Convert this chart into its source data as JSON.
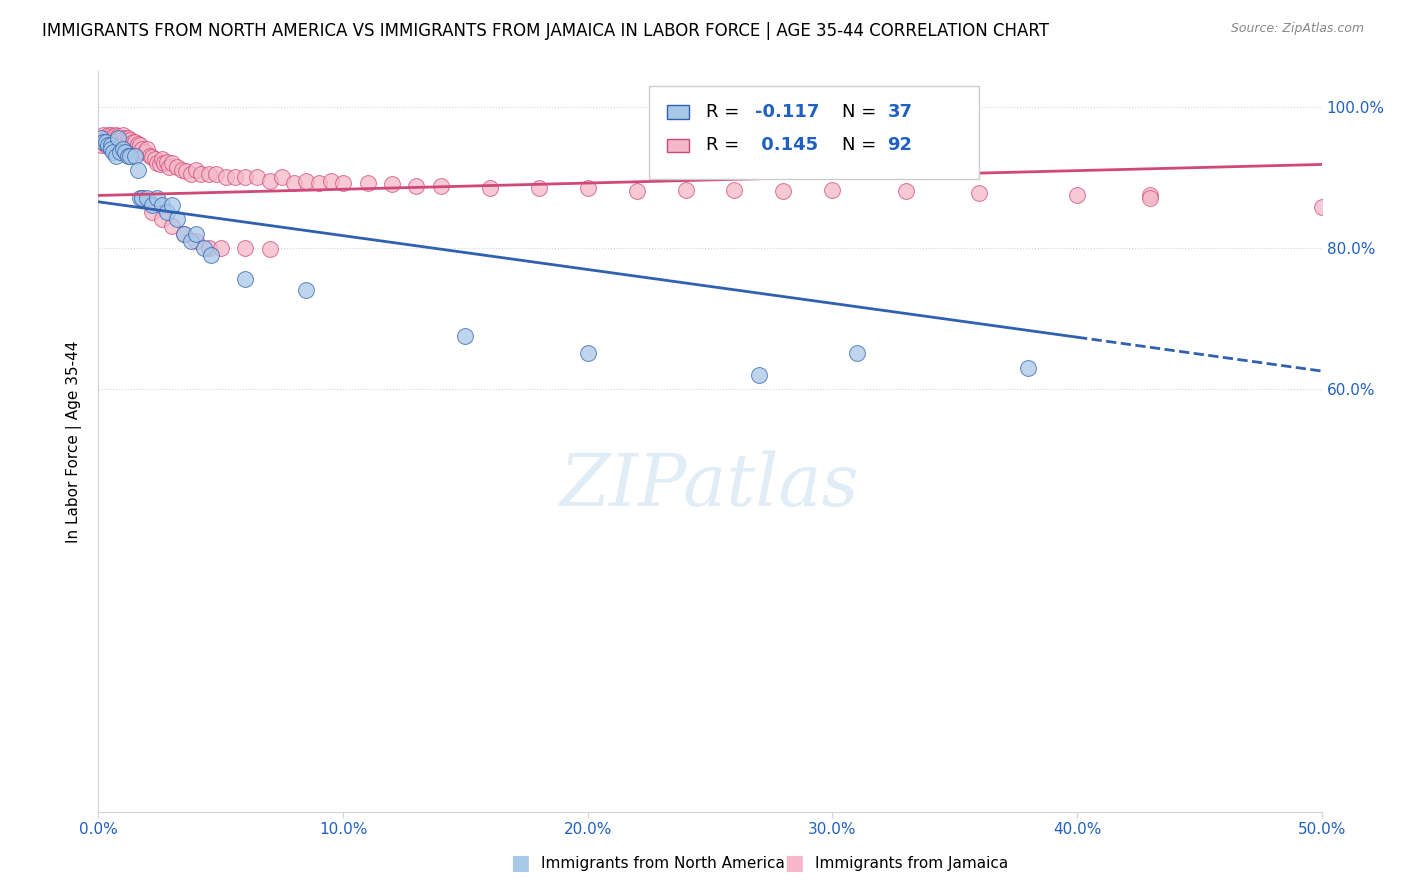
{
  "title": "IMMIGRANTS FROM NORTH AMERICA VS IMMIGRANTS FROM JAMAICA IN LABOR FORCE | AGE 35-44 CORRELATION CHART",
  "source": "Source: ZipAtlas.com",
  "ylabel_left": "In Labor Force | Age 35-44",
  "x_tick_labels": [
    "0.0%",
    "10.0%",
    "20.0%",
    "30.0%",
    "40.0%",
    "50.0%"
  ],
  "y_tick_labels_right": [
    "60.0%",
    "80.0%",
    "100.0%"
  ],
  "xlim": [
    0.0,
    0.5
  ],
  "ylim": [
    0.0,
    1.05
  ],
  "color_blue": "#a8c8e8",
  "color_pink": "#f4b8c8",
  "color_blue_line": "#3060b0",
  "color_pink_line": "#d04878",
  "title_fontsize": 12,
  "axis_label_fontsize": 11,
  "tick_fontsize": 11,
  "blue_line_x0": 0.0,
  "blue_line_y0": 0.865,
  "blue_line_x1": 0.5,
  "blue_line_y1": 0.625,
  "blue_line_solid_end": 0.4,
  "pink_line_x0": 0.0,
  "pink_line_y0": 0.874,
  "pink_line_x1": 0.5,
  "pink_line_y1": 0.918,
  "blue_points_x": [
    0.001,
    0.002,
    0.003,
    0.004,
    0.005,
    0.005,
    0.006,
    0.007,
    0.008,
    0.009,
    0.01,
    0.011,
    0.012,
    0.013,
    0.015,
    0.016,
    0.017,
    0.018,
    0.02,
    0.022,
    0.024,
    0.026,
    0.028,
    0.03,
    0.032,
    0.035,
    0.038,
    0.04,
    0.043,
    0.046,
    0.06,
    0.085,
    0.15,
    0.2,
    0.27,
    0.31,
    0.38
  ],
  "blue_points_y": [
    0.955,
    0.95,
    0.95,
    0.945,
    0.945,
    0.94,
    0.935,
    0.93,
    0.955,
    0.935,
    0.94,
    0.935,
    0.93,
    0.93,
    0.93,
    0.91,
    0.87,
    0.87,
    0.87,
    0.86,
    0.87,
    0.86,
    0.85,
    0.86,
    0.84,
    0.82,
    0.81,
    0.82,
    0.8,
    0.79,
    0.755,
    0.74,
    0.675,
    0.65,
    0.62,
    0.65,
    0.63
  ],
  "pink_points_x": [
    0.001,
    0.002,
    0.002,
    0.003,
    0.003,
    0.004,
    0.004,
    0.005,
    0.005,
    0.006,
    0.006,
    0.007,
    0.007,
    0.008,
    0.008,
    0.009,
    0.009,
    0.01,
    0.01,
    0.011,
    0.011,
    0.012,
    0.012,
    0.013,
    0.013,
    0.014,
    0.014,
    0.015,
    0.015,
    0.016,
    0.016,
    0.017,
    0.018,
    0.019,
    0.02,
    0.021,
    0.022,
    0.023,
    0.024,
    0.025,
    0.026,
    0.027,
    0.028,
    0.029,
    0.03,
    0.032,
    0.034,
    0.036,
    0.038,
    0.04,
    0.042,
    0.045,
    0.048,
    0.052,
    0.056,
    0.06,
    0.065,
    0.07,
    0.075,
    0.08,
    0.085,
    0.09,
    0.095,
    0.1,
    0.11,
    0.12,
    0.13,
    0.14,
    0.16,
    0.18,
    0.2,
    0.22,
    0.24,
    0.26,
    0.28,
    0.3,
    0.33,
    0.36,
    0.4,
    0.43,
    0.018,
    0.022,
    0.026,
    0.03,
    0.035,
    0.04,
    0.045,
    0.05,
    0.06,
    0.07,
    0.5,
    0.43
  ],
  "pink_points_y": [
    0.945,
    0.96,
    0.95,
    0.955,
    0.945,
    0.96,
    0.95,
    0.96,
    0.945,
    0.958,
    0.948,
    0.96,
    0.948,
    0.958,
    0.945,
    0.955,
    0.94,
    0.96,
    0.945,
    0.955,
    0.94,
    0.955,
    0.94,
    0.952,
    0.94,
    0.95,
    0.938,
    0.95,
    0.938,
    0.947,
    0.935,
    0.945,
    0.94,
    0.935,
    0.94,
    0.93,
    0.928,
    0.925,
    0.92,
    0.918,
    0.925,
    0.92,
    0.922,
    0.915,
    0.92,
    0.915,
    0.91,
    0.908,
    0.905,
    0.91,
    0.905,
    0.905,
    0.905,
    0.9,
    0.9,
    0.9,
    0.9,
    0.895,
    0.9,
    0.892,
    0.895,
    0.892,
    0.895,
    0.892,
    0.892,
    0.89,
    0.888,
    0.888,
    0.885,
    0.885,
    0.885,
    0.88,
    0.882,
    0.882,
    0.88,
    0.882,
    0.88,
    0.878,
    0.875,
    0.875,
    0.87,
    0.85,
    0.84,
    0.83,
    0.82,
    0.81,
    0.8,
    0.8,
    0.8,
    0.798,
    0.858,
    0.87
  ]
}
